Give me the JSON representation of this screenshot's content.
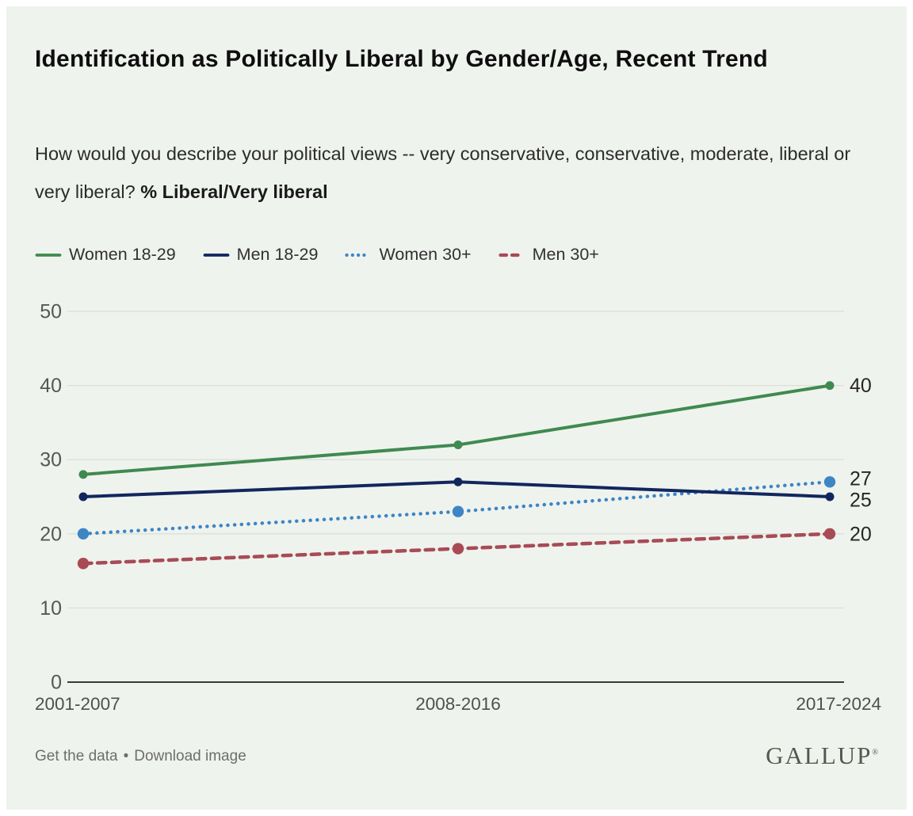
{
  "header": {
    "title": "Identification as Politically Liberal by Gender/Age, Recent Trend",
    "subtitle_question": "How would you describe your political views -- very conservative, conservative, moderate, liberal or very liberal? ",
    "subtitle_metric": "% Liberal/Very liberal"
  },
  "chart_data": {
    "type": "line",
    "title": "Identification as Politically Liberal by Gender/Age, Recent Trend",
    "categories": [
      "2001-2007",
      "2008-2016",
      "2017-2024"
    ],
    "series": [
      {
        "name": "Women 18-29",
        "values": [
          28,
          32,
          40
        ],
        "color": "#3f8a50",
        "style": "solid"
      },
      {
        "name": "Men 18-29",
        "values": [
          25,
          27,
          25
        ],
        "color": "#12265e",
        "style": "solid"
      },
      {
        "name": "Women 30+",
        "values": [
          20,
          23,
          27
        ],
        "color": "#3d85c4",
        "style": "dotted"
      },
      {
        "name": "Men 30+",
        "values": [
          16,
          18,
          20
        ],
        "color": "#a84b55",
        "style": "dashed"
      }
    ],
    "end_labels": [
      40,
      27,
      25,
      20
    ],
    "yticks": [
      0,
      10,
      20,
      30,
      40,
      50
    ],
    "ylim": [
      0,
      50
    ],
    "grid": "horizontal",
    "legend_position": "top",
    "xlabel": "",
    "ylabel": ""
  },
  "footer": {
    "link_get_data": "Get the data",
    "separator": "•",
    "link_download": "Download image",
    "brand": "GALLUP",
    "brand_mark": "®"
  },
  "colors": {
    "card_bg": "#eff3ee",
    "grid": "#dbdfd8",
    "axis": "#3a3a3a",
    "tick_label": "#565656",
    "xtick_label": "#4f4f4f",
    "end_label": "#262626"
  }
}
